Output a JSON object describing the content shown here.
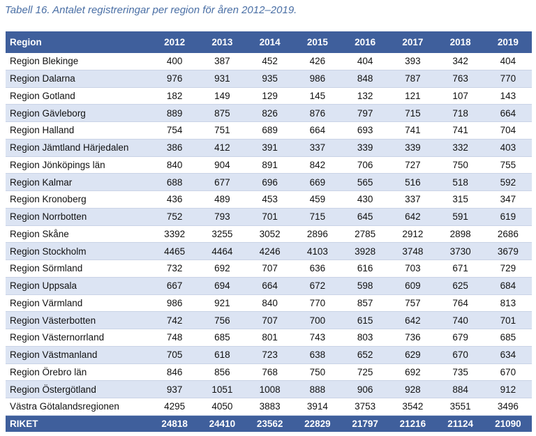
{
  "caption": "Tabell 16. Antalet registreringar per region för åren 2012–2019.",
  "table": {
    "header": [
      "Region",
      "2012",
      "2013",
      "2014",
      "2015",
      "2016",
      "2017",
      "2018",
      "2019"
    ],
    "rows": [
      [
        "Region Blekinge",
        "400",
        "387",
        "452",
        "426",
        "404",
        "393",
        "342",
        "404"
      ],
      [
        "Region Dalarna",
        "976",
        "931",
        "935",
        "986",
        "848",
        "787",
        "763",
        "770"
      ],
      [
        "Region Gotland",
        "182",
        "149",
        "129",
        "145",
        "132",
        "121",
        "107",
        "143"
      ],
      [
        "Region Gävleborg",
        "889",
        "875",
        "826",
        "876",
        "797",
        "715",
        "718",
        "664"
      ],
      [
        "Region Halland",
        "754",
        "751",
        "689",
        "664",
        "693",
        "741",
        "741",
        "704"
      ],
      [
        "Region Jämtland Härjedalen",
        "386",
        "412",
        "391",
        "337",
        "339",
        "339",
        "332",
        "403"
      ],
      [
        "Region Jönköpings län",
        "840",
        "904",
        "891",
        "842",
        "706",
        "727",
        "750",
        "755"
      ],
      [
        "Region Kalmar",
        "688",
        "677",
        "696",
        "669",
        "565",
        "516",
        "518",
        "592"
      ],
      [
        "Region Kronoberg",
        "436",
        "489",
        "453",
        "459",
        "430",
        "337",
        "315",
        "347"
      ],
      [
        "Region Norrbotten",
        "752",
        "793",
        "701",
        "715",
        "645",
        "642",
        "591",
        "619"
      ],
      [
        "Region Skåne",
        "3392",
        "3255",
        "3052",
        "2896",
        "2785",
        "2912",
        "2898",
        "2686"
      ],
      [
        "Region Stockholm",
        "4465",
        "4464",
        "4246",
        "4103",
        "3928",
        "3748",
        "3730",
        "3679"
      ],
      [
        "Region Sörmland",
        "732",
        "692",
        "707",
        "636",
        "616",
        "703",
        "671",
        "729"
      ],
      [
        "Region Uppsala",
        "667",
        "694",
        "664",
        "672",
        "598",
        "609",
        "625",
        "684"
      ],
      [
        "Region Värmland",
        "986",
        "921",
        "840",
        "770",
        "857",
        "757",
        "764",
        "813"
      ],
      [
        "Region Västerbotten",
        "742",
        "756",
        "707",
        "700",
        "615",
        "642",
        "740",
        "701"
      ],
      [
        "Region Västernorrland",
        "748",
        "685",
        "801",
        "743",
        "803",
        "736",
        "679",
        "685"
      ],
      [
        "Region Västmanland",
        "705",
        "618",
        "723",
        "638",
        "652",
        "629",
        "670",
        "634"
      ],
      [
        "Region Örebro län",
        "846",
        "856",
        "768",
        "750",
        "725",
        "692",
        "735",
        "670"
      ],
      [
        "Region Östergötland",
        "937",
        "1051",
        "1008",
        "888",
        "906",
        "928",
        "884",
        "912"
      ],
      [
        "Västra Götalandsregionen",
        "4295",
        "4050",
        "3883",
        "3914",
        "3753",
        "3542",
        "3551",
        "3496"
      ]
    ],
    "total": [
      "RIKET",
      "24818",
      "24410",
      "23562",
      "22829",
      "21797",
      "21216",
      "21124",
      "21090"
    ]
  },
  "colors": {
    "header_bg": "#3f5f9c",
    "stripe_bg": "#dce4f3",
    "caption": "#4a6fa5"
  }
}
